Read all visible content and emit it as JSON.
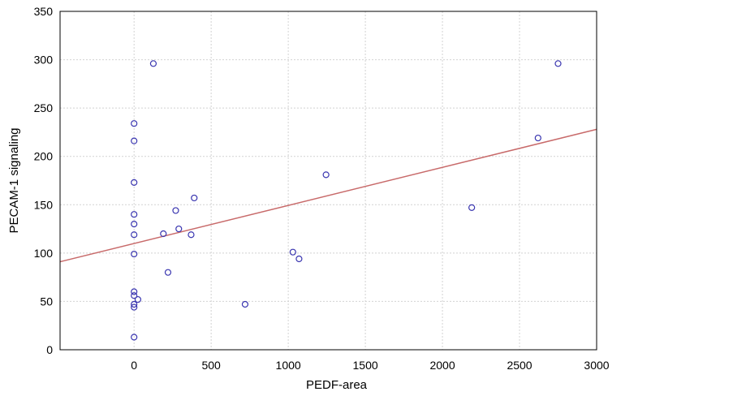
{
  "chart_data": {
    "type": "scatter",
    "title": "",
    "xlabel": "PEDF-area",
    "ylabel": "PECAM-1 signaling",
    "xlim": [
      -480,
      3000
    ],
    "ylim": [
      0,
      350
    ],
    "x_ticks": [
      0,
      500,
      1000,
      1500,
      2000,
      2500,
      3000
    ],
    "y_ticks": [
      0,
      50,
      100,
      150,
      200,
      250,
      300,
      350
    ],
    "x_tick_labels": [
      "0",
      "500",
      "1000",
      "1500",
      "2000",
      "2500",
      "3000"
    ],
    "y_tick_labels": [
      "0",
      "50",
      "100",
      "150",
      "200",
      "250",
      "300",
      "350"
    ],
    "grid": true,
    "legend": "none",
    "points": [
      {
        "x": 0,
        "y": 234
      },
      {
        "x": 0,
        "y": 216
      },
      {
        "x": 0,
        "y": 173
      },
      {
        "x": 0,
        "y": 140
      },
      {
        "x": 0,
        "y": 130
      },
      {
        "x": 0,
        "y": 119
      },
      {
        "x": 0,
        "y": 99
      },
      {
        "x": 0,
        "y": 60
      },
      {
        "x": 0,
        "y": 56
      },
      {
        "x": 0,
        "y": 47
      },
      {
        "x": 0,
        "y": 44
      },
      {
        "x": 0,
        "y": 13
      },
      {
        "x": 25,
        "y": 52
      },
      {
        "x": 125,
        "y": 296
      },
      {
        "x": 190,
        "y": 120
      },
      {
        "x": 220,
        "y": 80
      },
      {
        "x": 270,
        "y": 144
      },
      {
        "x": 290,
        "y": 125
      },
      {
        "x": 370,
        "y": 119
      },
      {
        "x": 390,
        "y": 157
      },
      {
        "x": 720,
        "y": 47
      },
      {
        "x": 1030,
        "y": 101
      },
      {
        "x": 1070,
        "y": 94
      },
      {
        "x": 1245,
        "y": 181
      },
      {
        "x": 2190,
        "y": 147
      },
      {
        "x": 2620,
        "y": 219
      },
      {
        "x": 2750,
        "y": 296
      }
    ],
    "fit_line": {
      "x": [
        -480,
        3000
      ],
      "y": [
        91,
        228
      ]
    },
    "colors": {
      "points": "#3a36b0",
      "fit_line": "#c86a6a",
      "grid": "#d2d2d2",
      "frame": "#000000"
    }
  }
}
